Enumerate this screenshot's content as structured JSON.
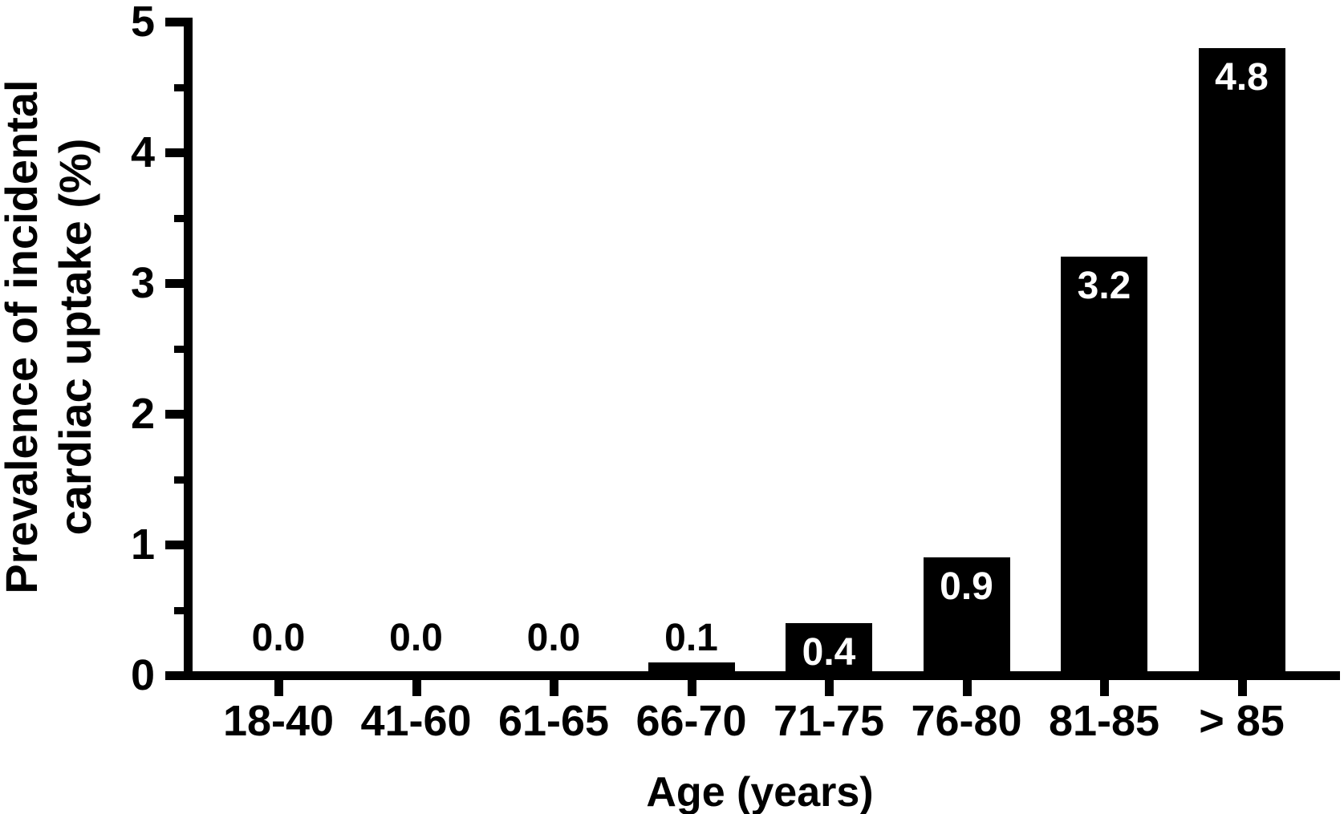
{
  "figure": {
    "background_color": "#ffffff",
    "axis_color": "#000000",
    "bar_color": "#000000",
    "in_bar_label_color": "#ffffff"
  },
  "chart_data": {
    "type": "bar",
    "title": "",
    "xlabel": "Age (years)",
    "ylabel": "Prevalence of incidental cardiac uptake (%)",
    "ylabel_lines": [
      "Prevalence of incidental",
      "cardiac uptake (%)"
    ],
    "categories": [
      "18-40",
      "41-60",
      "61-65",
      "66-70",
      "71-75",
      "76-80",
      "81-85",
      "> 85"
    ],
    "values": [
      0.0,
      0.0,
      0.0,
      0.1,
      0.4,
      0.9,
      3.2,
      4.8
    ],
    "value_labels": [
      "0.0",
      "0.0",
      "0.0",
      "0.1",
      "0.4",
      "0.9",
      "3.2",
      "4.8"
    ],
    "ylim": [
      0,
      5
    ],
    "y_major_ticks": [
      0,
      1,
      2,
      3,
      4,
      5
    ],
    "y_major_tick_labels": [
      "0",
      "1",
      "2",
      "3",
      "4",
      "5"
    ],
    "y_minor_ticks": [
      0.5,
      1.5,
      2.5,
      3.5,
      4.5
    ],
    "grid": false,
    "legend": null,
    "bar_orientation": "vertical",
    "value_label_style": "white inside bar when bar is tall enough, black above axis for 0.0 and 0.1"
  }
}
